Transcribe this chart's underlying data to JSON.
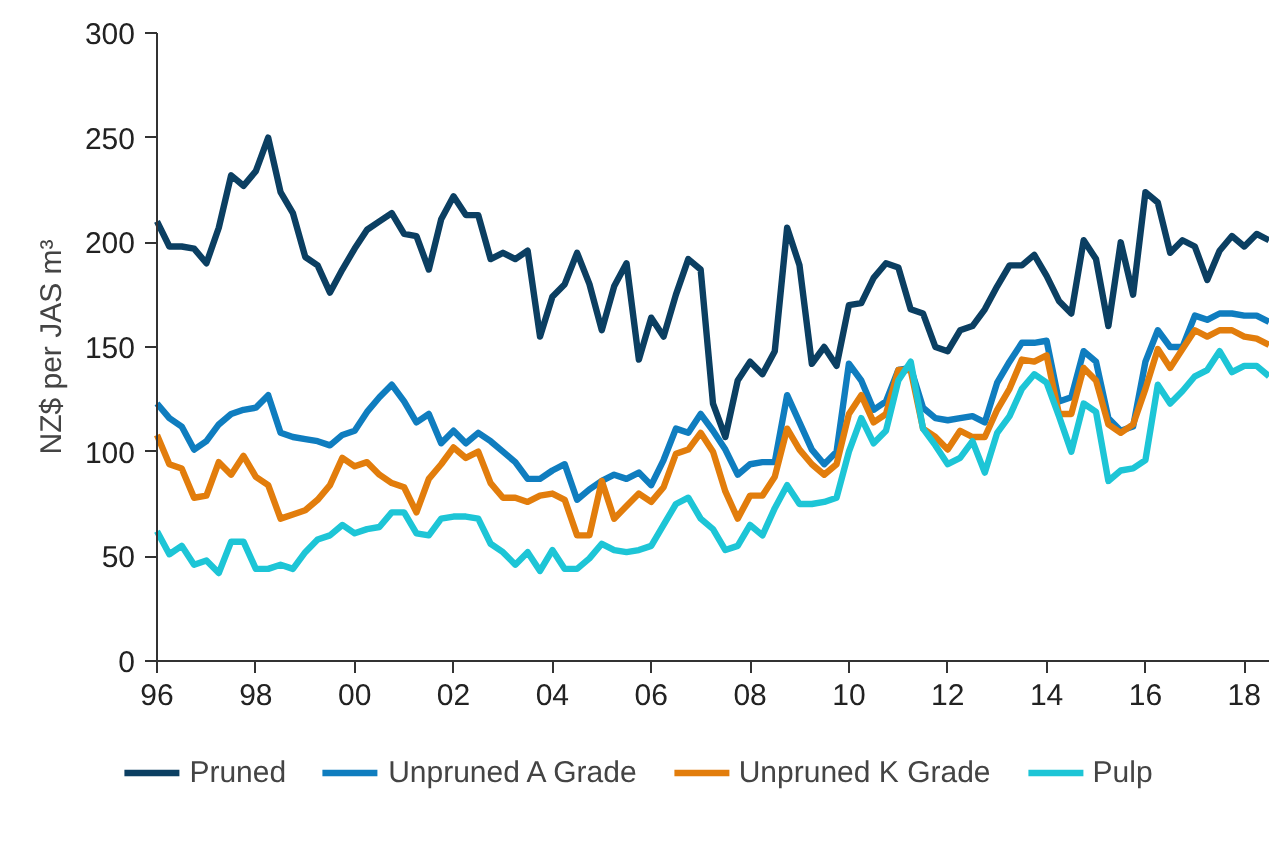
{
  "chart_data": {
    "type": "line",
    "ylabel": "NZ$ per JAS m³",
    "x": [
      1996,
      1996.25,
      1996.5,
      1996.75,
      1997,
      1997.25,
      1997.5,
      1997.75,
      1998,
      1998.25,
      1998.5,
      1998.75,
      1999,
      1999.25,
      1999.5,
      1999.75,
      2000,
      2000.25,
      2000.5,
      2000.75,
      2001,
      2001.25,
      2001.5,
      2001.75,
      2002,
      2002.25,
      2002.5,
      2002.75,
      2003,
      2003.25,
      2003.5,
      2003.75,
      2004,
      2004.25,
      2004.5,
      2004.75,
      2005,
      2005.25,
      2005.5,
      2005.75,
      2006,
      2006.25,
      2006.5,
      2006.75,
      2007,
      2007.25,
      2007.5,
      2007.75,
      2008,
      2008.25,
      2008.5,
      2008.75,
      2009,
      2009.25,
      2009.5,
      2009.75,
      2010,
      2010.25,
      2010.5,
      2010.75,
      2011,
      2011.25,
      2011.5,
      2011.75,
      2012,
      2012.25,
      2012.5,
      2012.75,
      2013,
      2013.25,
      2013.5,
      2013.75,
      2014,
      2014.25,
      2014.5,
      2014.75,
      2015,
      2015.25,
      2015.5,
      2015.75,
      2016,
      2016.25,
      2016.5,
      2016.75,
      2017,
      2017.25,
      2017.5,
      2017.75,
      2018,
      2018.25,
      2018.5
    ],
    "series": [
      {
        "name": "Pruned",
        "color": "#0b3f62",
        "values": [
          210,
          198,
          198,
          197,
          190,
          207,
          232,
          227,
          234,
          250,
          224,
          214,
          193,
          189,
          176,
          187,
          197,
          206,
          210,
          214,
          204,
          203,
          187,
          211,
          222,
          213,
          213,
          192,
          195,
          192,
          196,
          155,
          174,
          180,
          195,
          180,
          158,
          179,
          190,
          144,
          164,
          155,
          175,
          192,
          187,
          123,
          107,
          134,
          143,
          137,
          148,
          207,
          189,
          142,
          150,
          141,
          170,
          171,
          183,
          190,
          188,
          168,
          166,
          150,
          148,
          158,
          160,
          168,
          179,
          189,
          189,
          194,
          184,
          172,
          166,
          201,
          192,
          160,
          200,
          175,
          224,
          219,
          195,
          201,
          198,
          182,
          196,
          203,
          198,
          204,
          201
        ]
      },
      {
        "name": "Unpruned A Grade",
        "color": "#0f7dbf",
        "values": [
          123,
          116,
          112,
          101,
          105,
          113,
          118,
          120,
          121,
          127,
          109,
          107,
          106,
          105,
          103,
          108,
          110,
          119,
          126,
          132,
          124,
          114,
          118,
          104,
          110,
          104,
          109,
          105,
          100,
          95,
          87,
          87,
          91,
          94,
          77,
          82,
          86,
          89,
          87,
          90,
          84,
          96,
          111,
          109,
          118,
          110,
          101,
          89,
          94,
          95,
          95,
          127,
          114,
          101,
          94,
          100,
          142,
          134,
          120,
          124,
          139,
          140,
          121,
          116,
          115,
          116,
          117,
          114,
          133,
          143,
          152,
          152,
          153,
          124,
          126,
          148,
          143,
          116,
          110,
          112,
          143,
          158,
          150,
          150,
          165,
          163,
          166,
          166,
          165,
          165,
          162
        ]
      },
      {
        "name": "Unpruned K Grade",
        "color": "#e27d0c",
        "values": [
          108,
          94,
          92,
          78,
          79,
          95,
          89,
          98,
          88,
          84,
          68,
          70,
          72,
          77,
          84,
          97,
          93,
          95,
          89,
          85,
          83,
          71,
          87,
          94,
          102,
          97,
          100,
          85,
          78,
          78,
          76,
          79,
          80,
          77,
          60,
          60,
          86,
          68,
          74,
          80,
          76,
          83,
          99,
          101,
          109,
          100,
          81,
          68,
          79,
          79,
          88,
          111,
          101,
          94,
          89,
          94,
          118,
          127,
          114,
          118,
          139,
          139,
          111,
          107,
          101,
          110,
          107,
          107,
          120,
          130,
          144,
          143,
          146,
          118,
          118,
          140,
          134,
          113,
          109,
          113,
          130,
          149,
          140,
          149,
          158,
          155,
          158,
          158,
          155,
          154,
          151
        ]
      },
      {
        "name": "Pulp",
        "color": "#1dc5d6",
        "values": [
          62,
          51,
          55,
          46,
          48,
          42,
          57,
          57,
          44,
          44,
          46,
          44,
          52,
          58,
          60,
          65,
          61,
          63,
          64,
          71,
          71,
          61,
          60,
          68,
          69,
          69,
          68,
          56,
          52,
          46,
          52,
          43,
          53,
          44,
          44,
          49,
          56,
          53,
          52,
          53,
          55,
          65,
          75,
          78,
          68,
          63,
          53,
          55,
          65,
          60,
          73,
          84,
          75,
          75,
          76,
          78,
          100,
          116,
          104,
          110,
          134,
          143,
          111,
          103,
          94,
          97,
          105,
          90,
          109,
          117,
          130,
          137,
          133,
          117,
          100,
          123,
          119,
          86,
          91,
          92,
          96,
          132,
          123,
          129,
          136,
          139,
          148,
          138,
          141,
          141,
          136
        ]
      }
    ],
    "xlim": [
      1996,
      2018.5
    ],
    "xticks": [
      {
        "value": 1996,
        "label": "96"
      },
      {
        "value": 1998,
        "label": "98"
      },
      {
        "value": 2000,
        "label": "00"
      },
      {
        "value": 2002,
        "label": "02"
      },
      {
        "value": 2004,
        "label": "04"
      },
      {
        "value": 2006,
        "label": "06"
      },
      {
        "value": 2008,
        "label": "08"
      },
      {
        "value": 2010,
        "label": "10"
      },
      {
        "value": 2012,
        "label": "12"
      },
      {
        "value": 2014,
        "label": "14"
      },
      {
        "value": 2016,
        "label": "16"
      },
      {
        "value": 2018,
        "label": "18"
      }
    ],
    "ylim": [
      0,
      300
    ],
    "yticks": [
      0,
      50,
      100,
      150,
      200,
      250,
      300
    ],
    "grid": false,
    "legend": "bottom",
    "marker": "none",
    "line_style": "solid"
  }
}
